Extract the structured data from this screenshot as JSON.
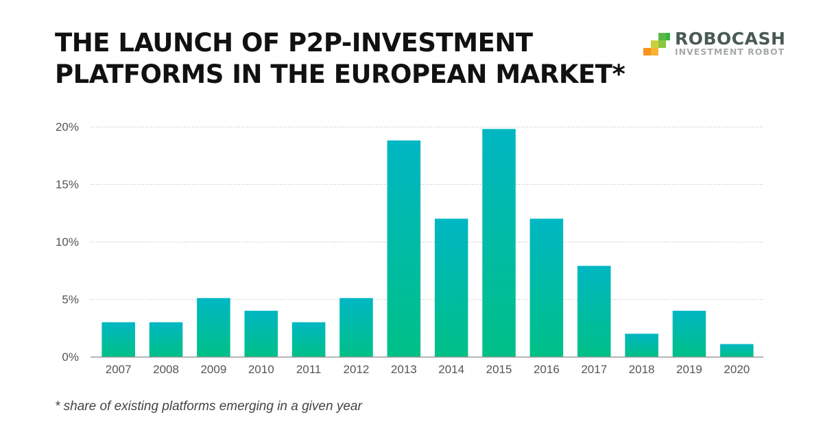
{
  "header": {
    "title_lines": [
      "THE LAUNCH OF P2P-INVESTMENT",
      "PLATFORMS IN THE EUROPEAN MARKET*"
    ]
  },
  "logo": {
    "name": "ROBOCASH",
    "tagline": "INVESTMENT ROBOT",
    "colors": [
      "#f7941d",
      "#f9b233",
      "#c8d13c",
      "#8dc63f",
      "#5db946",
      "#39b54a"
    ]
  },
  "footnote": "* share of existing platforms emerging in a given year",
  "colors": {
    "bar_top": "#00b7c3",
    "bar_bottom": "#00c087",
    "grid": "#cccccc",
    "axis": "#999999"
  },
  "chart_data": {
    "type": "bar",
    "title": "THE LAUNCH OF P2P-INVESTMENT PLATFORMS IN THE EUROPEAN MARKET*",
    "xlabel": "",
    "ylabel": "",
    "categories": [
      "2007",
      "2008",
      "2009",
      "2010",
      "2011",
      "2012",
      "2013",
      "2014",
      "2015",
      "2016",
      "2017",
      "2018",
      "2019",
      "2020"
    ],
    "values": [
      3,
      3,
      5.1,
      4,
      3,
      5.1,
      18.8,
      12,
      19.8,
      12,
      7.9,
      2,
      4,
      1.1
    ],
    "unit": "%",
    "ylim": [
      0,
      20
    ],
    "yticks": [
      0,
      5,
      10,
      15,
      20
    ],
    "ytick_labels": [
      "0%",
      "5%",
      "10%",
      "15%",
      "20%"
    ],
    "grid": true,
    "legend": "none"
  }
}
